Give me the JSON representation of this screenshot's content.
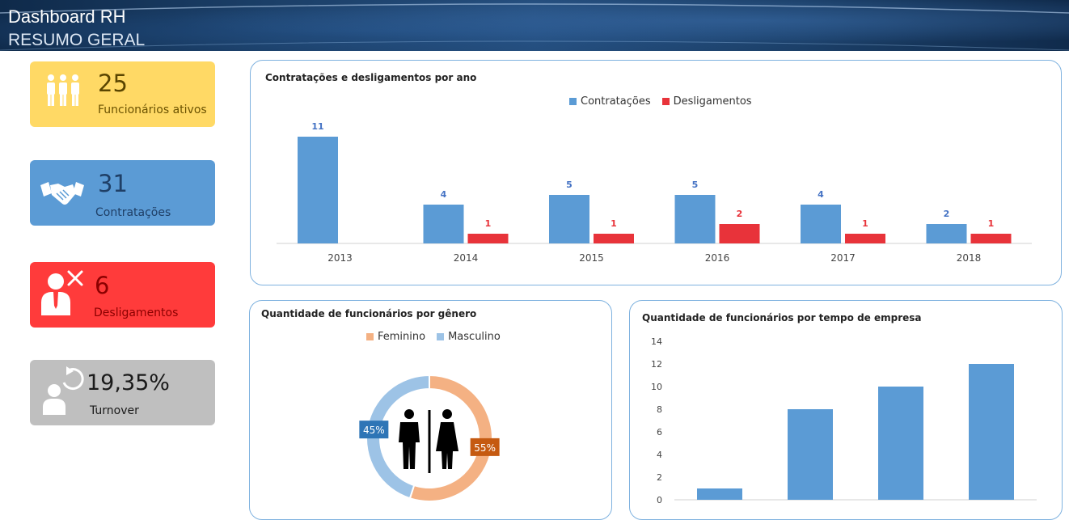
{
  "header": {
    "title": "Dashboard RH",
    "subtitle": "RESUMO GERAL"
  },
  "kpis": [
    {
      "value": "25",
      "label": "Funcionários ativos",
      "icon": "people-group-icon",
      "color": "#ffd965"
    },
    {
      "value": "31",
      "label": "Contratações",
      "icon": "handshake-icon",
      "color": "#5b9bd5"
    },
    {
      "value": "6",
      "label": "Desligamentos",
      "icon": "employee-removed-icon",
      "color": "#ff3b3b"
    },
    {
      "value": "19,35%",
      "label": "Turnover",
      "icon": "employee-refresh-icon",
      "color": "#bfbfbf"
    }
  ],
  "colors": {
    "contratacoes": "#5b9bd5",
    "desligamentos": "#e8333a",
    "feminino": "#f4b183",
    "masculino": "#9dc3e6"
  },
  "chart_data": [
    {
      "type": "bar",
      "title": "Contratações e desligamentos por ano",
      "categories": [
        "2013",
        "2014",
        "2015",
        "2016",
        "2017",
        "2018"
      ],
      "series": [
        {
          "name": "Contratações",
          "values": [
            11,
            4,
            5,
            5,
            4,
            2
          ]
        },
        {
          "name": "Desligamentos",
          "values": [
            null,
            1,
            1,
            2,
            1,
            1
          ]
        }
      ],
      "legend": "top-center",
      "grid": false
    },
    {
      "type": "pie",
      "title": "Quantidade de funcionários por gênero",
      "labels": [
        "Feminino",
        "Masculino"
      ],
      "values": [
        55,
        45
      ],
      "data_labels": [
        "55%",
        "45%"
      ],
      "legend": "top-center",
      "center_icon": "male-female-restroom-icon"
    },
    {
      "type": "bar",
      "title": "Quantidade de funcionários por tempo de empresa",
      "categories": [
        "",
        "",
        "",
        ""
      ],
      "values": [
        1,
        8,
        10,
        12
      ],
      "yticks": [
        "0",
        "2",
        "4",
        "6",
        "8",
        "10",
        "12",
        "14"
      ],
      "ylim": [
        0,
        14
      ],
      "grid": false
    }
  ]
}
